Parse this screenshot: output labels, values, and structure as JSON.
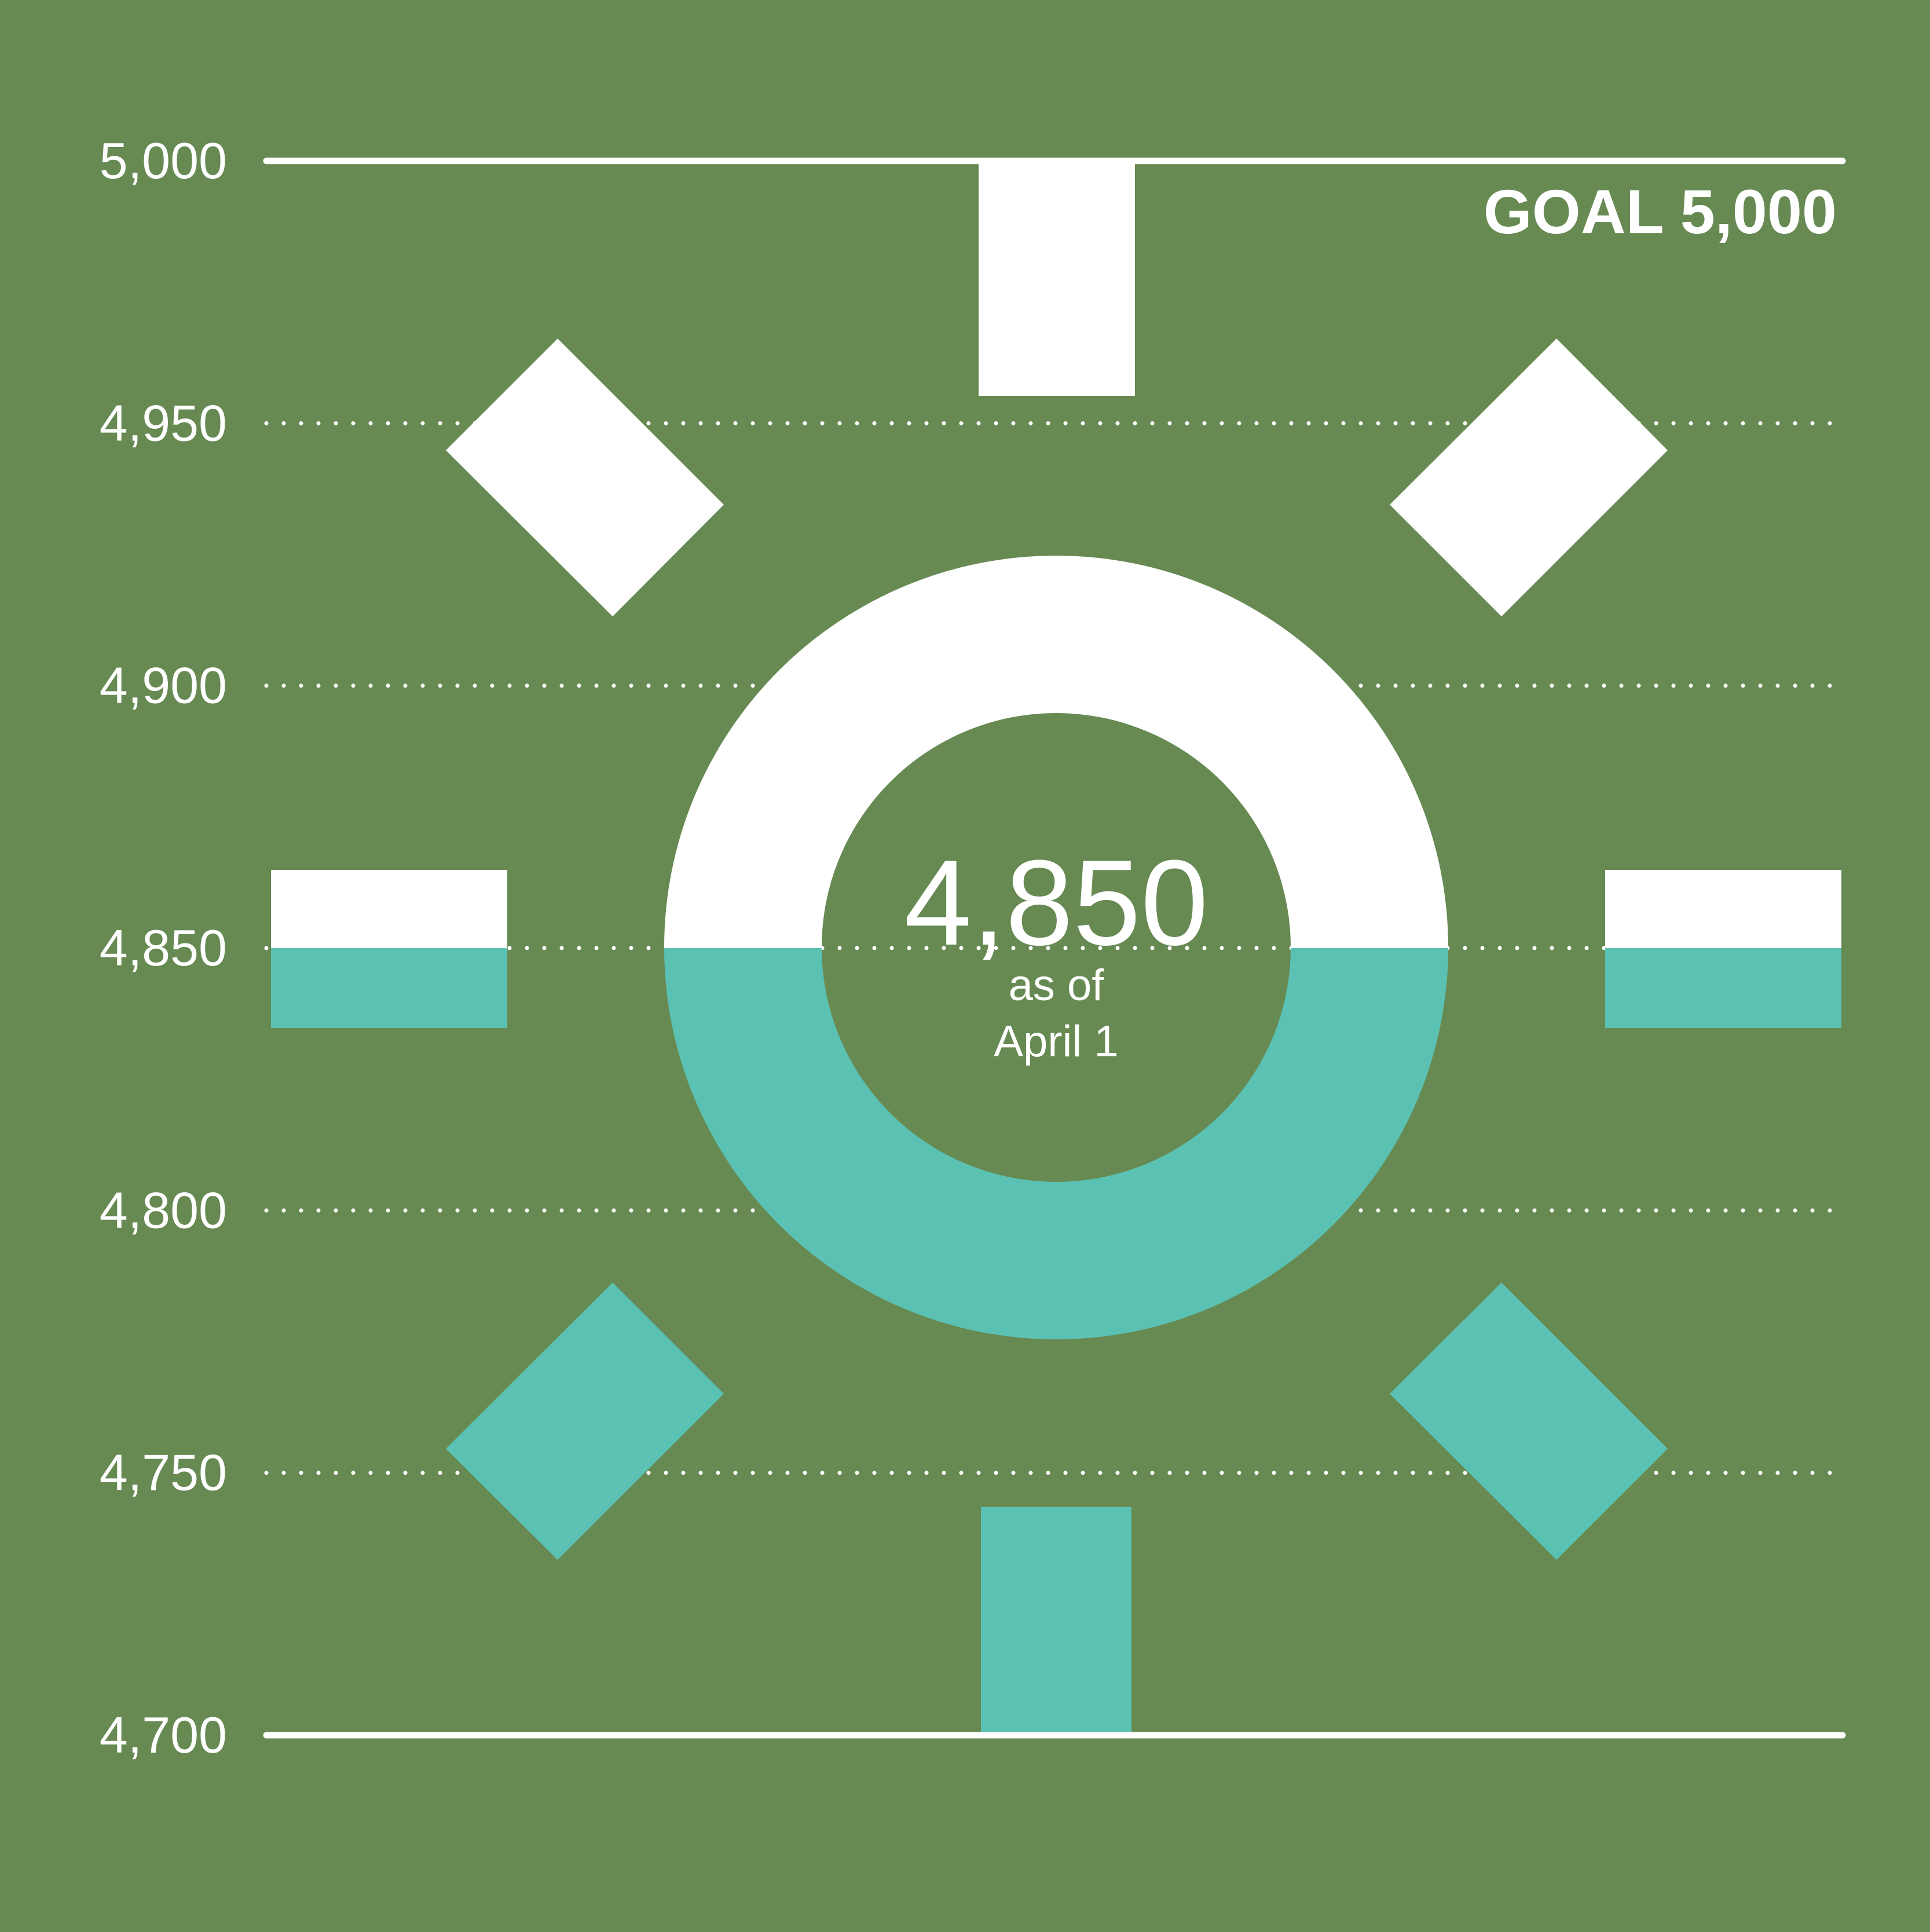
{
  "colors": {
    "background": "#678A53",
    "above": "#FFFFFF",
    "below": "#5BC2B3",
    "text": "#FFFFFF"
  },
  "chart_data": {
    "type": "gauge",
    "ylim": [
      4700,
      5000
    ],
    "ticks": [
      {
        "value": 5000,
        "label": "5,000",
        "line": "solid"
      },
      {
        "value": 4950,
        "label": "4,950",
        "line": "dotted"
      },
      {
        "value": 4900,
        "label": "4,900",
        "line": "dotted"
      },
      {
        "value": 4850,
        "label": "4,850",
        "line": "dotted"
      },
      {
        "value": 4800,
        "label": "4,800",
        "line": "dotted"
      },
      {
        "value": 4750,
        "label": "4,750",
        "line": "dotted"
      },
      {
        "value": 4700,
        "label": "4,700",
        "line": "solid"
      }
    ],
    "goal": {
      "value": 5000,
      "label": "GOAL 5,000"
    },
    "current": {
      "value": 4850,
      "value_label": "4,850",
      "caption_line1": "as of",
      "caption_line2": "April 1"
    }
  }
}
